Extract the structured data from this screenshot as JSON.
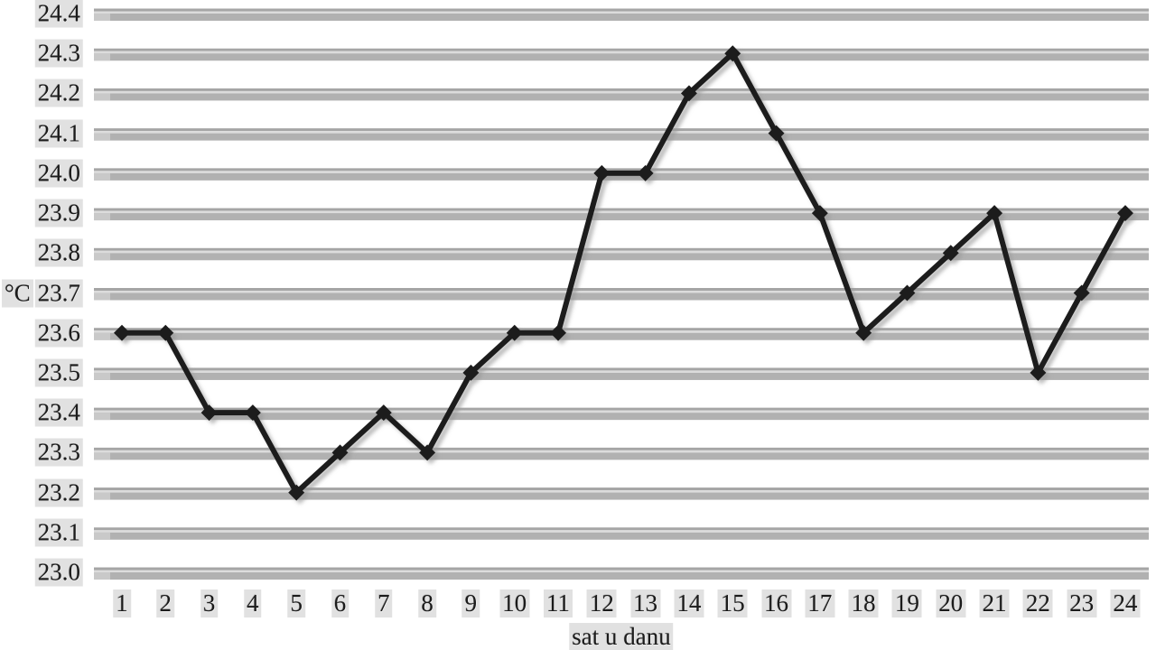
{
  "chart_data": {
    "type": "line",
    "title": "",
    "xlabel": "sat u danu",
    "ylabel": "°C",
    "x": [
      1,
      2,
      3,
      4,
      5,
      6,
      7,
      8,
      9,
      10,
      11,
      12,
      13,
      14,
      15,
      16,
      17,
      18,
      19,
      20,
      21,
      22,
      23,
      24
    ],
    "values": [
      23.6,
      23.6,
      23.4,
      23.4,
      23.2,
      23.3,
      23.4,
      23.3,
      23.5,
      23.6,
      23.6,
      24.0,
      24.0,
      24.2,
      24.3,
      24.1,
      23.9,
      23.6,
      23.7,
      23.8,
      23.9,
      23.5,
      23.7,
      23.9
    ],
    "xticks": [
      "1",
      "2",
      "3",
      "4",
      "5",
      "6",
      "7",
      "8",
      "9",
      "10",
      "11",
      "12",
      "13",
      "14",
      "15",
      "16",
      "17",
      "18",
      "19",
      "20",
      "21",
      "22",
      "23",
      "24"
    ],
    "yticks": [
      "23.0",
      "23.1",
      "23.2",
      "23.3",
      "23.4",
      "23.5",
      "23.6",
      "23.7",
      "23.8",
      "23.9",
      "24.0",
      "24.1",
      "24.2",
      "24.3",
      "24.4"
    ],
    "ylim": [
      23.0,
      24.4
    ],
    "ytick_step": 0.1,
    "grid": true,
    "legend": false,
    "series_color": "#1d1d1d",
    "marker": "diamond",
    "gridline_color": "#b1b1b1",
    "gridline_highlight": "#dcdcdc",
    "gridline_shadow": "#a5a5a5"
  }
}
